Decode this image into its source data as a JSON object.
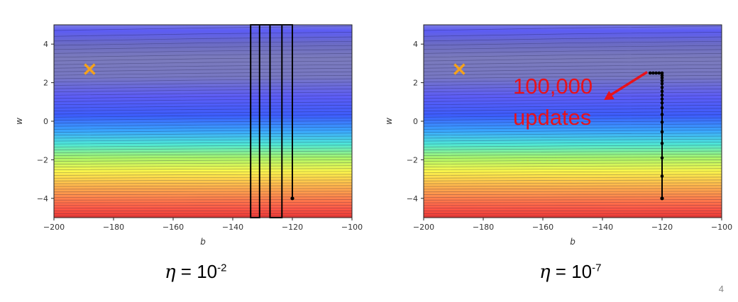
{
  "chart_data": [
    {
      "type": "line",
      "xlabel": "b",
      "ylabel": "w",
      "xlim": [
        -200,
        -100
      ],
      "ylim": [
        -5,
        5
      ],
      "xticks": [
        -200,
        -180,
        -160,
        -140,
        -120,
        -100
      ],
      "yticks": [
        -4,
        -2,
        0,
        2,
        4
      ],
      "minimum_marker": {
        "b": -188,
        "w": 2.7,
        "color": "#f5a21b"
      },
      "start_point": {
        "b": -120,
        "w": -4
      },
      "path": {
        "b": [
          -120,
          -120,
          -134,
          -134,
          -131,
          -131,
          -127.5,
          -127.5,
          -123.5,
          -123.5
        ],
        "w": [
          -4,
          5,
          5,
          -5,
          -5,
          5,
          5,
          -5,
          -5,
          5
        ]
      },
      "caption": {
        "symbol": "η",
        "text": " = 10",
        "exponent": "-2"
      }
    },
    {
      "type": "line",
      "xlabel": "b",
      "ylabel": "w",
      "xlim": [
        -200,
        -100
      ],
      "ylim": [
        -5,
        5
      ],
      "xticks": [
        -200,
        -180,
        -160,
        -140,
        -120,
        -100
      ],
      "yticks": [
        -4,
        -2,
        0,
        2,
        4
      ],
      "minimum_marker": {
        "b": -188,
        "w": 2.7,
        "color": "#f5a21b"
      },
      "start_point": {
        "b": -120,
        "w": -4
      },
      "path": {
        "b": [
          -120,
          -120,
          -120,
          -120,
          -120,
          -120,
          -120,
          -120,
          -120,
          -120,
          -120,
          -120,
          -120,
          -120,
          -120,
          -120,
          -120,
          -120,
          -121,
          -122,
          -123,
          -124
        ],
        "w": [
          -4,
          -2.85,
          -1.9,
          -1.15,
          -0.55,
          -0.05,
          0.35,
          0.7,
          0.95,
          1.15,
          1.35,
          1.55,
          1.75,
          1.95,
          2.1,
          2.25,
          2.38,
          2.5,
          2.5,
          2.5,
          2.5,
          2.5
        ]
      },
      "annotation": {
        "line1": "100,000",
        "line2": "updates",
        "color": "#e8121b"
      },
      "caption": {
        "symbol": "η",
        "text": " = 10",
        "exponent": "-7"
      }
    }
  ],
  "page_number": "4"
}
